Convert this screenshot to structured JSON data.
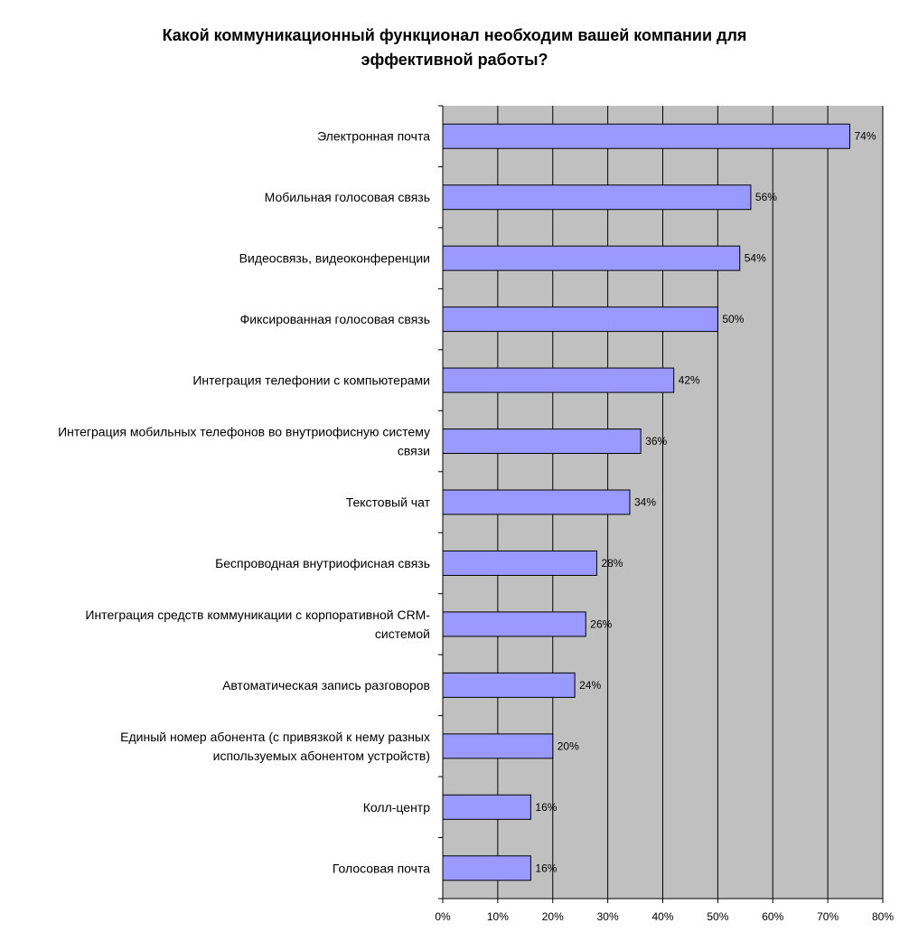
{
  "chart_data": {
    "type": "bar",
    "orientation": "horizontal",
    "title_lines": [
      "Какой коммуникационный функционал необходим вашей компании для",
      "эффективной работы?"
    ],
    "categories": [
      [
        "Электронная почта"
      ],
      [
        "Мобильная голосовая связь"
      ],
      [
        "Видеосвязь, видеоконференции"
      ],
      [
        "Фиксированная голосовая связь"
      ],
      [
        "Интеграция телефонии с компьютерами"
      ],
      [
        "Интеграция мобильных телефонов во внутриофисную систему",
        "связи"
      ],
      [
        "Текстовый чат"
      ],
      [
        "Беспроводная внутриофисная связь"
      ],
      [
        "Интеграция средств коммуникации с корпоративной CRM-",
        "системой"
      ],
      [
        "Автоматическая запись разговоров"
      ],
      [
        "Единый номер абонента (с привязкой к нему разных",
        "используемых абонентом устройств)"
      ],
      [
        "Колл-центр"
      ],
      [
        "Голосовая почта"
      ]
    ],
    "values": [
      74,
      56,
      54,
      50,
      42,
      36,
      34,
      28,
      26,
      24,
      20,
      16,
      16
    ],
    "data_labels": [
      "74%",
      "56%",
      "54%",
      "50%",
      "42%",
      "36%",
      "34%",
      "28%",
      "26%",
      "24%",
      "20%",
      "16%",
      "16%"
    ],
    "xlim": [
      0,
      80
    ],
    "x_ticks": [
      0,
      10,
      20,
      30,
      40,
      50,
      60,
      70,
      80
    ],
    "x_tick_labels": [
      "0%",
      "10%",
      "20%",
      "30%",
      "40%",
      "50%",
      "60%",
      "70%",
      "80%"
    ],
    "grid": true,
    "legend": "none",
    "colors": {
      "plot_background": "#c0c0c0",
      "bar_fill": "#9999ff",
      "bar_stroke": "#000000",
      "gridline": "#000000"
    }
  }
}
